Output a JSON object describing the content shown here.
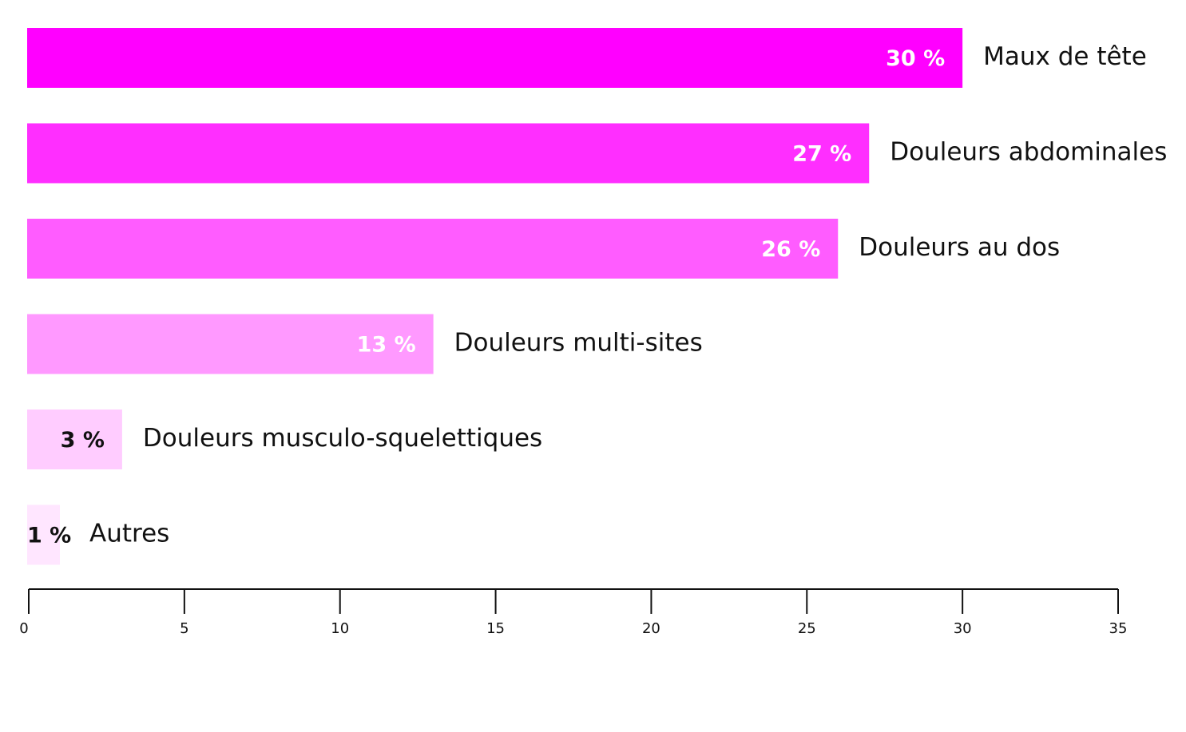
{
  "chart_data": {
    "type": "hbar",
    "categories": [
      "Maux de tête",
      "Douleurs abdominales",
      "Douleurs au dos",
      "Douleurs multi-sites",
      "Douleurs musculo-squelettiques",
      "Autres"
    ],
    "values": [
      30,
      27,
      26,
      13,
      3,
      1
    ],
    "value_labels": [
      "30 %",
      "27 %",
      "26 %",
      "13 %",
      "3 %",
      "1 %"
    ],
    "colors": [
      "#ff00ff",
      "#ff2eff",
      "#ff5cff",
      "#ff99ff",
      "#ffccff",
      "#ffe6ff"
    ],
    "xlim": [
      0,
      35
    ],
    "xticks": [
      0,
      5,
      10,
      15,
      20,
      25,
      30,
      35
    ]
  }
}
